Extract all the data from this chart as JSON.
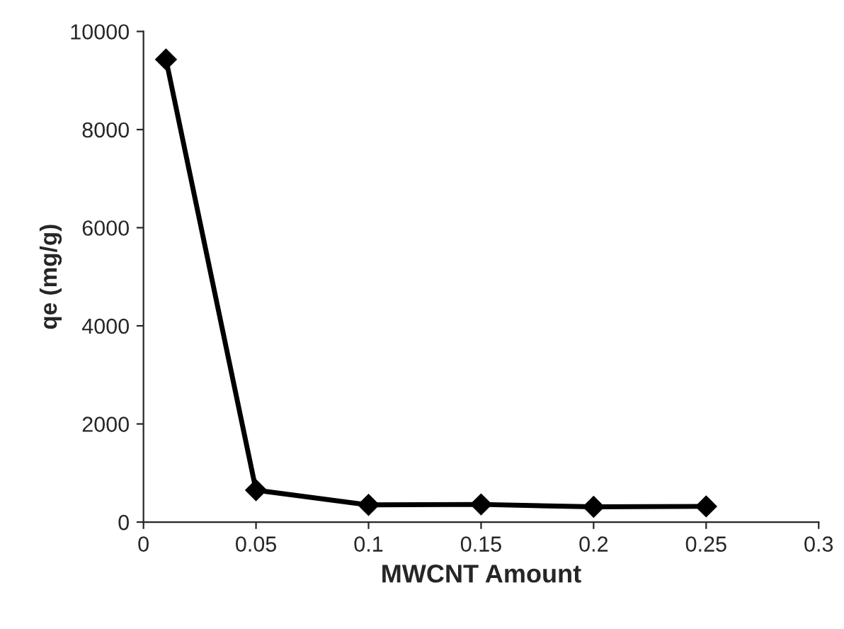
{
  "chart_data": {
    "type": "line",
    "xlabel": "MWCNT Amount",
    "ylabel": "qe (mg/g)",
    "x": [
      0.01,
      0.05,
      0.1,
      0.15,
      0.2,
      0.25
    ],
    "series": [
      {
        "color": "#000000",
        "values": [
          9430,
          650,
          350,
          360,
          310,
          320
        ]
      }
    ],
    "xlim": [
      0,
      0.3
    ],
    "xticks": [
      0,
      0.05,
      0.1,
      0.15,
      0.2,
      0.25,
      0.3
    ],
    "ylim": [
      0,
      10000
    ],
    "yticks": [
      0,
      2000,
      4000,
      6000,
      8000,
      10000
    ],
    "grid": false,
    "legend": false,
    "marker": "diamond",
    "line_style": "solid"
  }
}
